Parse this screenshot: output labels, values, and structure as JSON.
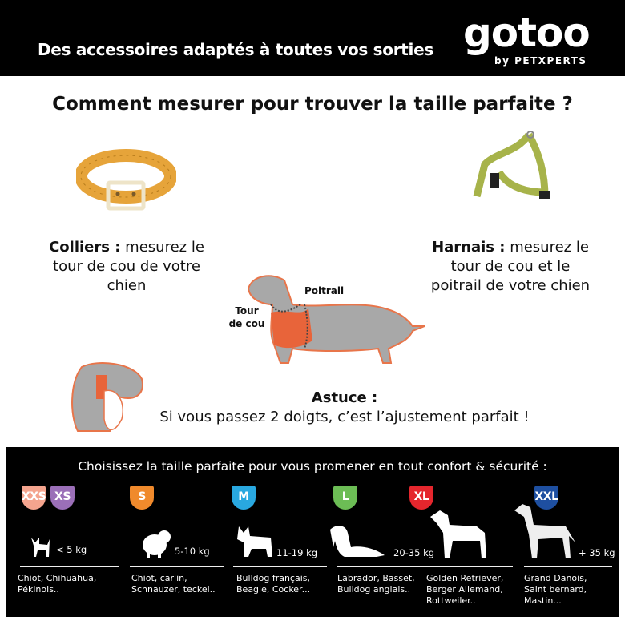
{
  "header": {
    "tagline": "Des accessoires adaptés à toutes vos sorties",
    "logo": "gotoo",
    "logo_sub": "by PETXPERTS"
  },
  "title": "Comment mesurer pour trouver la taille parfaite ?",
  "colliers": {
    "bold": "Colliers :",
    "text": " mesurez le tour de cou de votre chien"
  },
  "harnais": {
    "bold": "Harnais :",
    "text": " mesurez le tour de cou et le poitrail de votre chien"
  },
  "dog_labels": {
    "poitrail": "Poitrail",
    "tour_de_cou_1": "Tour",
    "tour_de_cou_2": "de cou"
  },
  "astuce": {
    "title": "Astuce :",
    "text": "Si vous passez 2 doigts, c’est l’ajustement parfait !"
  },
  "sizes_panel": {
    "title": "Choisissez la taille parfaite pour vous promener en tout confort & sécurité :",
    "badges": [
      {
        "label": "XXS",
        "color": "#f4a48e"
      },
      {
        "label": "XS",
        "color": "#9b6fb8"
      },
      {
        "label": "S",
        "color": "#f08a2c"
      },
      {
        "label": "M",
        "color": "#29a8e0"
      },
      {
        "label": "L",
        "color": "#6cbd55"
      },
      {
        "label": "XL",
        "color": "#e5262d"
      },
      {
        "label": "XXL",
        "color": "#1e4fa0"
      }
    ],
    "weights": [
      "< 5 kg",
      "5-10 kg",
      "11-19 kg",
      "20-35 kg",
      "+ 35 kg"
    ],
    "breeds": [
      [
        "Chiot, Chihuahua,",
        "Pékinois.."
      ],
      [
        "Chiot, carlin,",
        "Schnauzer, teckel.."
      ],
      [
        "Bulldog français,",
        "Beagle, Cocker..."
      ],
      [
        "Labrador, Basset,",
        "Bulldog anglais.."
      ],
      [
        "Golden Retriever,",
        "Berger Allemand,",
        "Rottweiler.."
      ],
      [
        "Grand Danois,",
        "Saint bernard,",
        "Mastin..."
      ]
    ]
  }
}
